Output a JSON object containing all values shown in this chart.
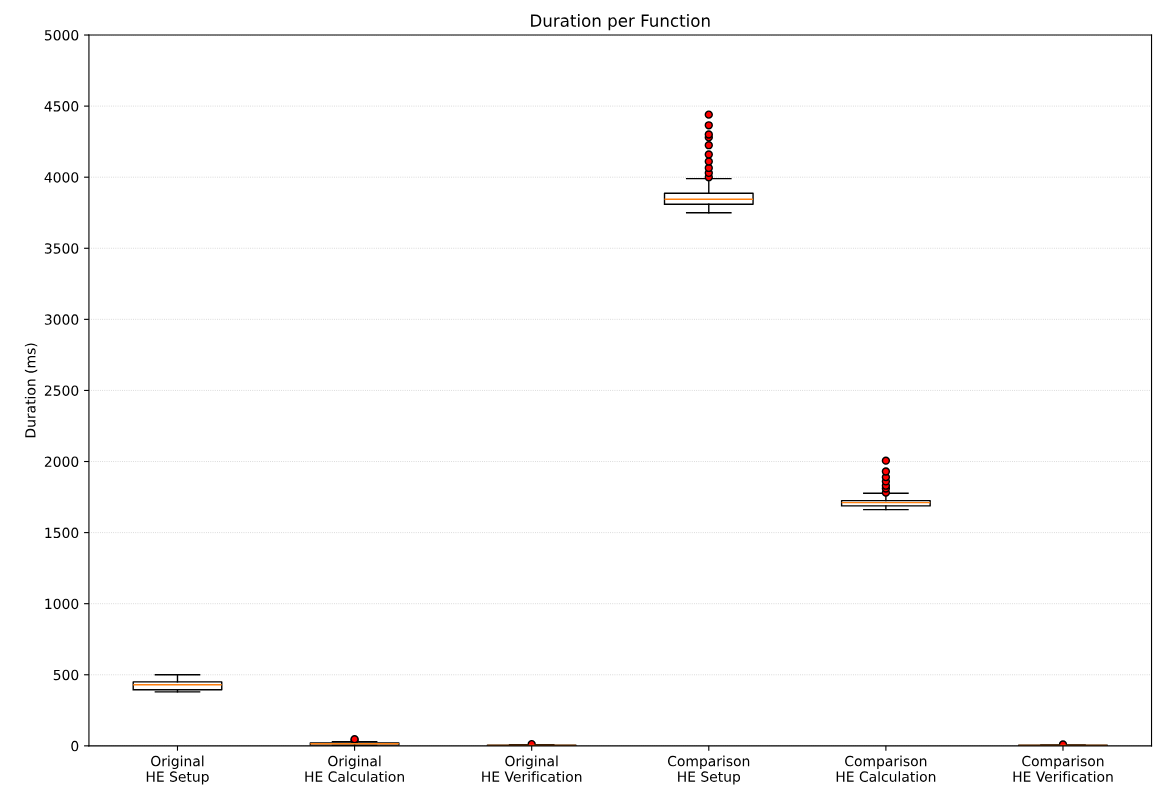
{
  "chart_data": {
    "type": "box",
    "title": "Duration per Function",
    "ylabel": "Duration (ms)",
    "categories": [
      "Original\nHE Setup",
      "Original\nHE Calculation",
      "Original\nHE Verification",
      "Comparison\nHE Setup",
      "Comparison\nHE Calculation",
      "Comparison\nHE Verification"
    ],
    "boxes": [
      {
        "low": 380,
        "q1": 395,
        "median": 430,
        "q3": 450,
        "high": 500
      },
      {
        "low": 2,
        "q1": 5,
        "median": 15,
        "q3": 21,
        "high": 30,
        "outliers": [
          40,
          47
        ]
      },
      {
        "low": 1,
        "q1": 2,
        "median": 3,
        "q3": 5,
        "high": 8,
        "outliers": [
          12
        ]
      },
      {
        "low": 3750,
        "q1": 3810,
        "median": 3845,
        "q3": 3887,
        "high": 3990,
        "outliers": [
          4000,
          4030,
          4065,
          4110,
          4160,
          4225,
          4280,
          4300,
          4365,
          4440
        ]
      },
      {
        "low": 1662,
        "q1": 1688,
        "median": 1711,
        "q3": 1725,
        "high": 1777,
        "outliers": [
          1781,
          1810,
          1830,
          1860,
          1890,
          1930,
          2006
        ]
      },
      {
        "low": 1,
        "q1": 2,
        "median": 3,
        "q3": 4,
        "high": 6,
        "outliers": [
          10
        ]
      }
    ],
    "color": "#000000",
    "ylim": [
      0,
      5000
    ],
    "yticks": [
      0,
      500,
      1000,
      1500,
      2000,
      2500,
      3000,
      3500,
      4000,
      4500,
      5000
    ],
    "grid": "y"
  }
}
